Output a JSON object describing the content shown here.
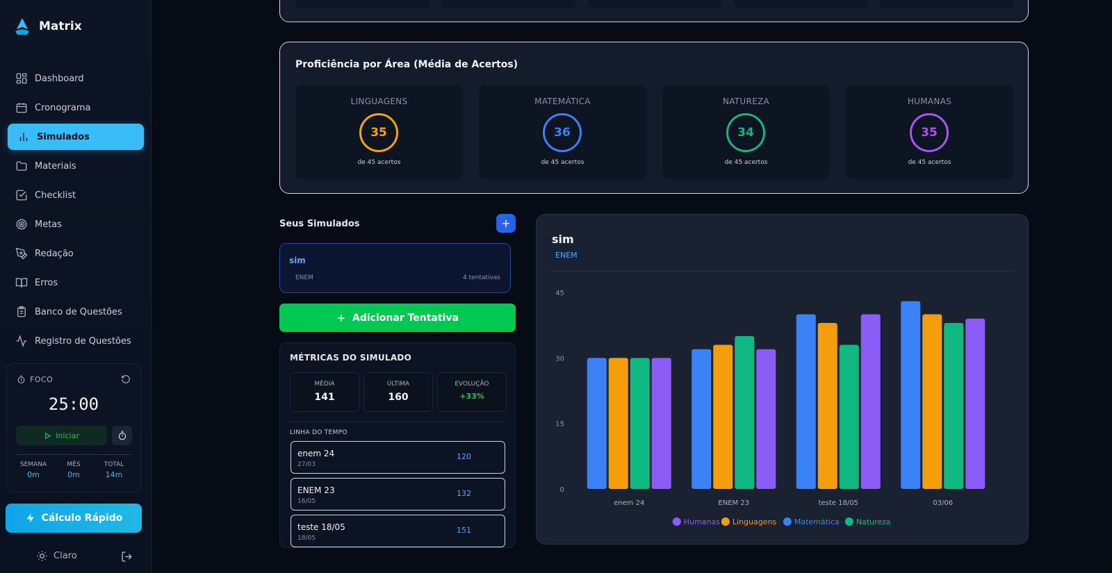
{
  "app": {
    "name": "Matrix"
  },
  "sidebar": {
    "items": [
      {
        "label": "Dashboard",
        "icon": "dashboard-icon"
      },
      {
        "label": "Cronograma",
        "icon": "calendar-icon"
      },
      {
        "label": "Simulados",
        "icon": "bar-chart-icon",
        "active": true
      },
      {
        "label": "Materiais",
        "icon": "folder-icon"
      },
      {
        "label": "Checklist",
        "icon": "checkbox-icon"
      },
      {
        "label": "Metas",
        "icon": "target-icon"
      },
      {
        "label": "Redação",
        "icon": "pen-icon"
      },
      {
        "label": "Erros",
        "icon": "book-icon"
      },
      {
        "label": "Banco de Questões",
        "icon": "clipboard-icon"
      },
      {
        "label": "Registro de Questões",
        "icon": "activity-icon"
      }
    ],
    "focus": {
      "label": "FOCO",
      "time": "25:00",
      "start_label": "Iniciar",
      "stats": [
        {
          "label": "SEMANA",
          "value": "0m"
        },
        {
          "label": "MÊS",
          "value": "0m"
        },
        {
          "label": "TOTAL",
          "value": "14m"
        }
      ]
    },
    "quick_calc_label": "Cálculo Rápido",
    "theme_label": "Claro"
  },
  "proficiency": {
    "title": "Proficiência por Área (Média de Acertos)",
    "areas": [
      {
        "name": "LINGUAGENS",
        "value": "35",
        "sub": "de 45 acertos",
        "color": "#f5a60b"
      },
      {
        "name": "MATEMÁTICA",
        "value": "36",
        "sub": "de 45 acertos",
        "color": "#3b82f6"
      },
      {
        "name": "NATUREZA",
        "value": "34",
        "sub": "de 45 acertos",
        "color": "#10b981"
      },
      {
        "name": "HUMANAS",
        "value": "35",
        "sub": "de 45 acertos",
        "color": "#a855f7"
      }
    ]
  },
  "simulados": {
    "title": "Seus Simulados",
    "add_label": "+",
    "items": [
      {
        "name": "sim",
        "type": "ENEM",
        "attempts": "4 tentativas"
      }
    ],
    "add_attempt_label": "Adicionar Tentativa"
  },
  "metrics": {
    "title": "MÉTRICAS DO SIMULADO",
    "boxes": [
      {
        "label": "MÉDIA",
        "value": "141"
      },
      {
        "label": "ÚLTIMA",
        "value": "160"
      },
      {
        "label": "EVOLUÇÃO",
        "value": "+33%"
      }
    ],
    "timeline_label": "LINHA DO TEMPO",
    "timeline": [
      {
        "name": "enem 24",
        "date": "27/03",
        "score": "120"
      },
      {
        "name": "ENEM 23",
        "date": "16/05",
        "score": "132"
      },
      {
        "name": "teste 18/05",
        "date": "18/05",
        "score": "151"
      }
    ]
  },
  "chart_panel": {
    "title": "sim",
    "badge": "ENEM"
  },
  "chart_data": {
    "type": "bar",
    "categories": [
      "enem 24",
      "ENEM 23",
      "teste 18/05",
      "03/06"
    ],
    "series": [
      {
        "name": "Matemática",
        "color": "#3b82f6",
        "values": [
          30,
          32,
          40,
          43
        ]
      },
      {
        "name": "Linguagens",
        "color": "#f59e0b",
        "values": [
          30,
          33,
          38,
          40
        ]
      },
      {
        "name": "Natureza",
        "color": "#10b981",
        "values": [
          30,
          35,
          33,
          38
        ]
      },
      {
        "name": "Humanas",
        "color": "#8b5cf6",
        "values": [
          30,
          32,
          40,
          39
        ]
      }
    ],
    "legend": [
      {
        "name": "Humanas",
        "color": "#8b5cf6"
      },
      {
        "name": "Linguagens",
        "color": "#f59e0b"
      },
      {
        "name": "Matemática",
        "color": "#3b82f6"
      },
      {
        "name": "Natureza",
        "color": "#10b981"
      }
    ],
    "yticks": [
      "0",
      "15",
      "30",
      "45"
    ],
    "ylim": [
      0,
      45
    ],
    "legend_position": "bottom-center"
  }
}
